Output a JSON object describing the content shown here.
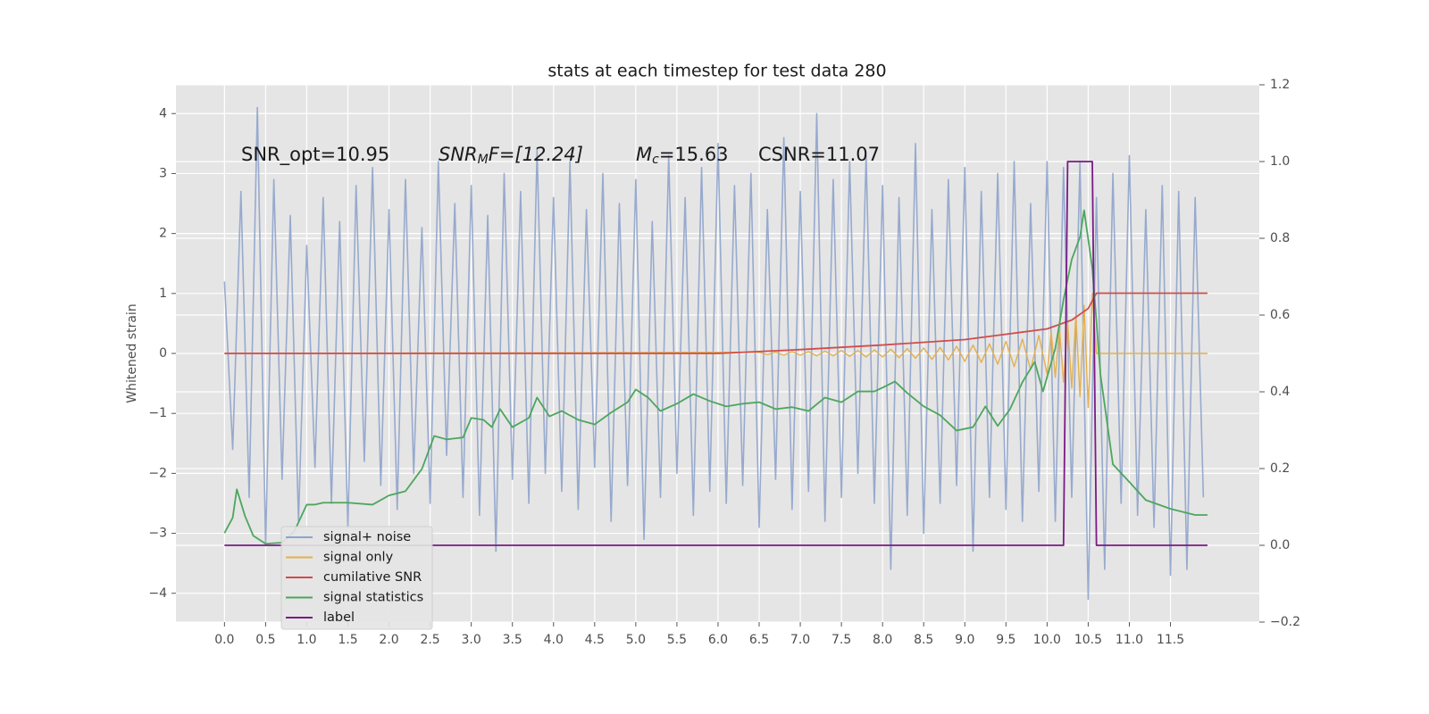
{
  "chart_data": {
    "type": "line",
    "title": "stats at each timestep for test data 280",
    "ylabel": "Whitened strain",
    "xlim": [
      -0.59,
      12.58
    ],
    "ylim": [
      -4.48,
      4.48
    ],
    "y2lim": [
      -0.2,
      1.2
    ],
    "xticks": [
      {
        "value": 0,
        "label": "0.0"
      },
      0.5,
      {
        "value": 1,
        "label": "1.0"
      },
      1.5,
      {
        "value": 2,
        "label": "2.0"
      },
      2.5,
      {
        "value": 3,
        "label": "3.0"
      },
      3.5,
      {
        "value": 4,
        "label": "4.0"
      },
      4.5,
      {
        "value": 5,
        "label": "5.0"
      },
      5.5,
      {
        "value": 6,
        "label": "6.0"
      },
      6.5,
      {
        "value": 7,
        "label": "7.0"
      },
      7.5,
      {
        "value": 8,
        "label": "8.0"
      },
      8.5,
      {
        "value": 9,
        "label": "9.0"
      },
      9.5,
      {
        "value": 10,
        "label": "10.0"
      },
      10.5,
      {
        "value": 11,
        "label": "11.0"
      },
      11.5
    ],
    "yticks": [
      4,
      3,
      2,
      1,
      0,
      {
        "value": -1,
        "label": "−1"
      },
      {
        "value": -2,
        "label": "−2"
      },
      {
        "value": -3,
        "label": "−3"
      },
      {
        "value": -4,
        "label": "−4"
      }
    ],
    "y2ticks": [
      1.2,
      {
        "value": 1,
        "label": "1.0"
      },
      0.8,
      0.6,
      0.4,
      0.2,
      {
        "value": 0,
        "label": "0.0"
      },
      {
        "value": -0.2,
        "label": "−0.2"
      }
    ],
    "grid": true,
    "legend": "lower left",
    "annotations": [
      {
        "text": "SNR_opt=10.95"
      },
      {
        "symbol": "SNR",
        "sub": "M",
        "text": "F=[12.24]"
      },
      {
        "symbol": "M",
        "sub": "c",
        "text": "=15.63"
      },
      {
        "text": "CSNR=11.07"
      }
    ],
    "series": [
      {
        "name": "signal+ noise",
        "color": "#8ea3cb",
        "axis": "y",
        "x": [
          0.0,
          0.1,
          0.2,
          0.3,
          0.4,
          0.5,
          0.6,
          0.7,
          0.8,
          0.9,
          1.0,
          1.1,
          1.2,
          1.3,
          1.4,
          1.5,
          1.6,
          1.7,
          1.8,
          1.9,
          2.0,
          2.1,
          2.2,
          2.3,
          2.4,
          2.5,
          2.6,
          2.7,
          2.8,
          2.9,
          3.0,
          3.1,
          3.2,
          3.3,
          3.4,
          3.5,
          3.6,
          3.7,
          3.8,
          3.9,
          4.0,
          4.1,
          4.2,
          4.3,
          4.4,
          4.5,
          4.6,
          4.7,
          4.8,
          4.9,
          5.0,
          5.1,
          5.2,
          5.3,
          5.4,
          5.5,
          5.6,
          5.7,
          5.8,
          5.9,
          6.0,
          6.1,
          6.2,
          6.3,
          6.4,
          6.5,
          6.6,
          6.7,
          6.8,
          6.9,
          7.0,
          7.1,
          7.2,
          7.3,
          7.4,
          7.5,
          7.6,
          7.7,
          7.8,
          7.9,
          8.0,
          8.1,
          8.2,
          8.3,
          8.4,
          8.5,
          8.6,
          8.7,
          8.8,
          8.9,
          9.0,
          9.1,
          9.2,
          9.3,
          9.4,
          9.5,
          9.6,
          9.7,
          9.8,
          9.9,
          10.0,
          10.1,
          10.2,
          10.3,
          10.4,
          10.5,
          10.6,
          10.7,
          10.8,
          10.9,
          11.0,
          11.1,
          11.2,
          11.3,
          11.4,
          11.5,
          11.6,
          11.7,
          11.8,
          11.9
        ],
        "values": [
          1.2,
          -1.6,
          2.7,
          -2.4,
          4.1,
          -3.2,
          2.9,
          -2.1,
          2.3,
          -2.8,
          1.8,
          -1.9,
          2.6,
          -2.5,
          2.2,
          -2.9,
          2.8,
          -1.8,
          3.1,
          -2.2,
          2.4,
          -2.6,
          2.9,
          -2.0,
          2.1,
          -2.5,
          3.2,
          -1.7,
          2.5,
          -2.4,
          2.8,
          -2.7,
          2.3,
          -3.3,
          3.0,
          -2.1,
          2.7,
          -2.5,
          3.4,
          -2.0,
          2.6,
          -2.3,
          3.2,
          -2.6,
          2.4,
          -1.9,
          3.0,
          -2.8,
          2.5,
          -2.2,
          2.9,
          -3.1,
          2.2,
          -2.4,
          3.3,
          -2.0,
          2.6,
          -2.7,
          3.1,
          -2.3,
          3.5,
          -2.5,
          2.8,
          -2.2,
          3.0,
          -2.9,
          2.4,
          -2.1,
          3.6,
          -2.6,
          2.7,
          -2.3,
          4.0,
          -2.8,
          2.9,
          -2.4,
          3.2,
          -2.0,
          3.3,
          -2.5,
          2.8,
          -3.6,
          2.6,
          -2.7,
          3.5,
          -3.0,
          2.4,
          -2.5,
          2.9,
          -2.2,
          3.1,
          -3.3,
          2.7,
          -2.4,
          3.0,
          -2.6,
          3.2,
          -2.8,
          2.5,
          -2.3,
          3.2,
          -2.8,
          3.1,
          -2.4,
          3.2,
          -4.1,
          2.6,
          -3.6,
          3.0,
          -2.5,
          3.3,
          -2.7,
          2.4,
          -2.9,
          2.8,
          -3.7,
          2.7,
          -3.6,
          2.6,
          -2.4
        ]
      },
      {
        "name": "signal only",
        "color": "#e3b04e",
        "axis": "y",
        "x": [
          0,
          6.5,
          6.6,
          6.7,
          6.8,
          6.9,
          7.0,
          7.1,
          7.2,
          7.3,
          7.4,
          7.5,
          7.6,
          7.7,
          7.8,
          7.9,
          8.0,
          8.1,
          8.2,
          8.3,
          8.4,
          8.5,
          8.6,
          8.7,
          8.8,
          8.9,
          9.0,
          9.1,
          9.2,
          9.3,
          9.4,
          9.5,
          9.6,
          9.7,
          9.8,
          9.9,
          10.0,
          10.05,
          10.1,
          10.15,
          10.2,
          10.25,
          10.3,
          10.35,
          10.4,
          10.45,
          10.5,
          10.55,
          10.6,
          11.95
        ],
        "values": [
          0,
          0.02,
          -0.02,
          0.02,
          -0.03,
          0.03,
          -0.03,
          0.03,
          -0.04,
          0.04,
          -0.04,
          0.05,
          -0.05,
          0.05,
          -0.06,
          0.06,
          -0.06,
          0.07,
          -0.07,
          0.08,
          -0.08,
          0.09,
          -0.1,
          0.1,
          -0.11,
          0.12,
          -0.13,
          0.14,
          -0.15,
          0.16,
          -0.18,
          0.2,
          -0.22,
          0.24,
          -0.27,
          0.3,
          -0.34,
          0.36,
          -0.4,
          0.43,
          -0.48,
          0.52,
          -0.58,
          0.64,
          -0.72,
          0.8,
          -0.9,
          1.0,
          0,
          0
        ]
      },
      {
        "name": "cumilative SNR",
        "color": "#d04c4c",
        "axis": "y2",
        "x": [
          0,
          6,
          7,
          8,
          9,
          9.5,
          10,
          10.3,
          10.5,
          10.6,
          11.95
        ],
        "values": [
          0.5,
          0.5,
          0.51,
          0.522,
          0.536,
          0.55,
          0.564,
          0.587,
          0.617,
          0.657,
          0.657
        ]
      },
      {
        "name": "signal statistics",
        "color": "#4ca65c",
        "axis": "y2",
        "x": [
          0,
          0.1,
          0.15,
          0.25,
          0.35,
          0.5,
          0.7,
          0.85,
          1.0,
          1.1,
          1.2,
          1.5,
          1.8,
          2.0,
          2.2,
          2.4,
          2.55,
          2.7,
          2.9,
          3.0,
          3.15,
          3.25,
          3.35,
          3.5,
          3.7,
          3.8,
          3.95,
          4.1,
          4.3,
          4.5,
          4.7,
          4.9,
          5.0,
          5.15,
          5.3,
          5.5,
          5.7,
          5.9,
          6.1,
          6.3,
          6.5,
          6.7,
          6.9,
          7.1,
          7.3,
          7.5,
          7.7,
          7.9,
          8.0,
          8.15,
          8.3,
          8.5,
          8.7,
          8.9,
          9.1,
          9.25,
          9.4,
          9.55,
          9.7,
          9.85,
          9.95,
          10.1,
          10.2,
          10.3,
          10.4,
          10.45,
          10.55,
          10.65,
          10.8,
          11.0,
          11.2,
          11.5,
          11.8,
          11.95
        ],
        "values": [
          0.032,
          0.072,
          0.146,
          0.076,
          0.025,
          0.004,
          0.007,
          0.037,
          0.106,
          0.106,
          0.111,
          0.111,
          0.106,
          0.13,
          0.141,
          0.199,
          0.285,
          0.276,
          0.281,
          0.332,
          0.327,
          0.308,
          0.355,
          0.308,
          0.332,
          0.385,
          0.336,
          0.35,
          0.327,
          0.315,
          0.346,
          0.373,
          0.406,
          0.385,
          0.35,
          0.369,
          0.394,
          0.376,
          0.362,
          0.369,
          0.373,
          0.355,
          0.36,
          0.35,
          0.385,
          0.373,
          0.401,
          0.401,
          0.411,
          0.427,
          0.397,
          0.362,
          0.339,
          0.299,
          0.308,
          0.362,
          0.311,
          0.355,
          0.425,
          0.478,
          0.401,
          0.513,
          0.64,
          0.745,
          0.803,
          0.873,
          0.722,
          0.443,
          0.211,
          0.165,
          0.118,
          0.095,
          0.079,
          0.079
        ]
      },
      {
        "name": "label",
        "color": "#7a1a86",
        "axis": "y2",
        "x": [
          0,
          10.2,
          10.25,
          10.55,
          10.6,
          11.95
        ],
        "values": [
          0,
          0,
          1,
          1,
          0,
          0
        ]
      }
    ]
  }
}
